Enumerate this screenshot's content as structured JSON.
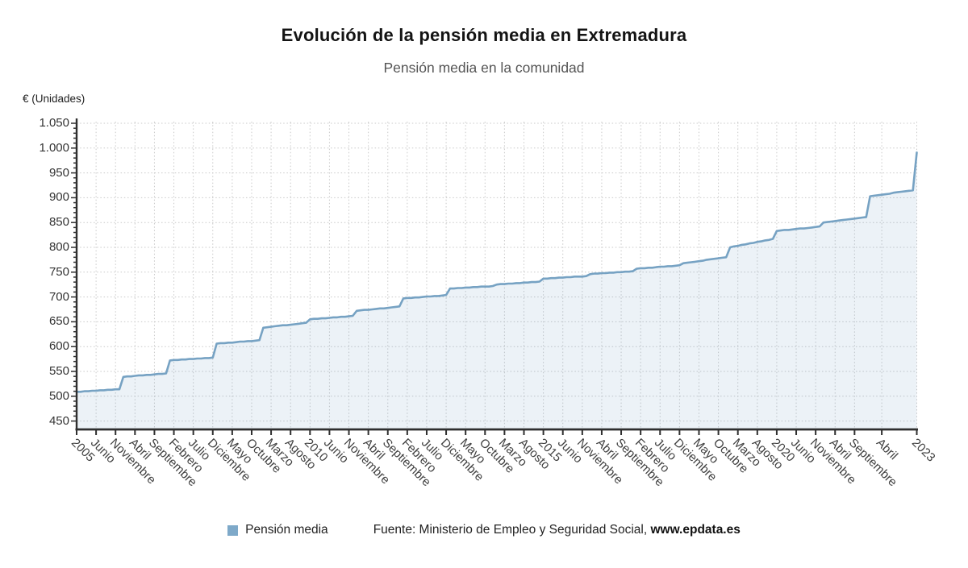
{
  "header": {
    "title": "Evolución de la pensión media en Extremadura",
    "subtitle": "Pensión media en la comunidad"
  },
  "axis_unit_label": "€ (Unidades)",
  "legend": {
    "series_label": "Pensión media",
    "marker_color": "#7EA9C9"
  },
  "source": {
    "prefix": "Fuente: Ministerio de Empleo y Seguridad Social, ",
    "link": "www.epdata.es"
  },
  "colors": {
    "line": "#76A2C3",
    "area_fill": "rgba(121,163,197,0.14)",
    "grid": "#c9c9c9",
    "axis": "#2f2f2f",
    "tick_label": "#3f3f3f"
  },
  "chart_data": {
    "type": "area",
    "title": "Evolución de la pensión media en Extremadura",
    "subtitle": "Pensión media en la comunidad",
    "ylabel": "€ (Unidades)",
    "xlabel": "",
    "ylim": [
      450,
      1050
    ],
    "ytick_step": 50,
    "y_tick_labels": [
      "450",
      "500",
      "550",
      "600",
      "650",
      "700",
      "750",
      "800",
      "850",
      "900",
      "950",
      "1.000",
      "1.050"
    ],
    "grid": "dotted",
    "legend_position": "bottom",
    "x_freq": "monthly",
    "x_start": "2005-01",
    "x_end": "2023-01",
    "x_tick_months": [
      0,
      5,
      10,
      15,
      20,
      25,
      30,
      35,
      40,
      45,
      50,
      55,
      60,
      65,
      70,
      75,
      80,
      85,
      90,
      95,
      100,
      105,
      110,
      115,
      120,
      125,
      130,
      135,
      140,
      145,
      150,
      155,
      160,
      165,
      170,
      175,
      180,
      185,
      190,
      195,
      200,
      207,
      216
    ],
    "x_tick_labels": [
      "2005",
      "Junio",
      "Noviembre",
      "Abril",
      "Septiembre",
      "Febrero",
      "Julio",
      "Diciembre",
      "Mayo",
      "Octubre",
      "Marzo",
      "Agosto",
      "2010",
      "Junio",
      "Noviembre",
      "Abril",
      "Septiembre",
      "Febrero",
      "Julio",
      "Diciembre",
      "Mayo",
      "Octubre",
      "Marzo",
      "Agosto",
      "2015",
      "Junio",
      "Noviembre",
      "Abril",
      "Septiembre",
      "Febrero",
      "Julio",
      "Diciembre",
      "Mayo",
      "Octubre",
      "Marzo",
      "Agosto",
      "2020",
      "Junio",
      "Noviembre",
      "Abril",
      "Septiembre",
      "Abril",
      "2023"
    ],
    "series": [
      {
        "name": "Pensión media",
        "color": "#76A2C3",
        "values": [
          509,
          509,
          510,
          510,
          511,
          511,
          512,
          512,
          513,
          513,
          514,
          514,
          539,
          540,
          540,
          541,
          542,
          542,
          543,
          543,
          544,
          545,
          545,
          546,
          572,
          573,
          573,
          574,
          574,
          575,
          575,
          576,
          576,
          577,
          577,
          578,
          606,
          607,
          607,
          608,
          608,
          609,
          610,
          610,
          611,
          611,
          612,
          613,
          638,
          639,
          640,
          641,
          642,
          643,
          643,
          644,
          645,
          646,
          647,
          648,
          655,
          656,
          656,
          657,
          657,
          658,
          659,
          659,
          660,
          660,
          661,
          662,
          672,
          673,
          674,
          674,
          675,
          676,
          677,
          677,
          678,
          679,
          680,
          681,
          697,
          698,
          698,
          699,
          699,
          700,
          701,
          701,
          702,
          702,
          703,
          704,
          717,
          717,
          718,
          718,
          719,
          719,
          720,
          720,
          721,
          721,
          721,
          722,
          725,
          726,
          726,
          727,
          727,
          728,
          728,
          729,
          729,
          730,
          730,
          731,
          737,
          737,
          738,
          738,
          739,
          739,
          740,
          740,
          741,
          741,
          741,
          742,
          746,
          747,
          747,
          748,
          748,
          749,
          749,
          750,
          750,
          751,
          751,
          752,
          757,
          758,
          758,
          759,
          759,
          760,
          761,
          761,
          762,
          762,
          763,
          764,
          768,
          769,
          770,
          771,
          772,
          773,
          775,
          776,
          777,
          778,
          779,
          780,
          800,
          802,
          803,
          805,
          806,
          808,
          809,
          811,
          812,
          814,
          815,
          817,
          833,
          834,
          835,
          835,
          836,
          837,
          838,
          838,
          839,
          840,
          841,
          842,
          850,
          851,
          852,
          853,
          854,
          855,
          856,
          857,
          858,
          859,
          860,
          861,
          903,
          904,
          905,
          906,
          907,
          908,
          910,
          911,
          912,
          913,
          914,
          915,
          991
        ]
      }
    ]
  }
}
